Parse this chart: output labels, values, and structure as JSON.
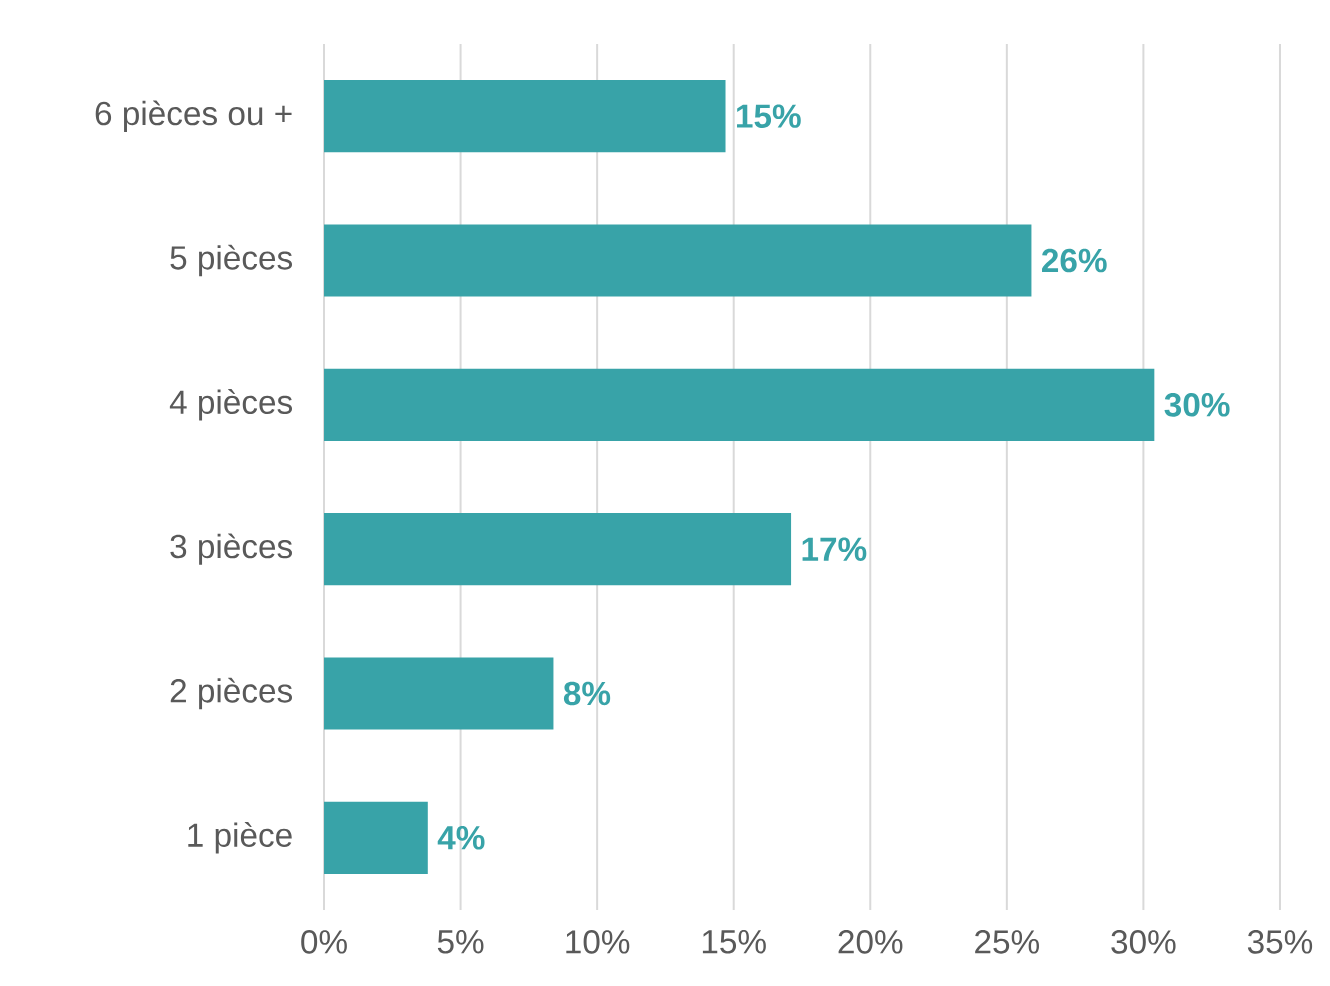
{
  "chart_data": {
    "type": "bar",
    "orientation": "horizontal",
    "categories": [
      "6 pièces ou +",
      "5 pièces",
      "4 pièces",
      "3 pièces",
      "2 pièces",
      "1 pièce"
    ],
    "values": [
      14.7,
      25.9,
      30.4,
      17.1,
      8.4,
      3.8
    ],
    "value_labels": [
      "15%",
      "26%",
      "30%",
      "17%",
      "8%",
      "4%"
    ],
    "color": "#38a3a8",
    "xlim": [
      0,
      35
    ],
    "xticks": [
      {
        "value": 0,
        "label": "0%"
      },
      {
        "value": 5,
        "label": "5%"
      },
      {
        "value": 10,
        "label": "10%"
      },
      {
        "value": 15,
        "label": "15%"
      },
      {
        "value": 20,
        "label": "20%"
      },
      {
        "value": 25,
        "label": "25%"
      },
      {
        "value": 30,
        "label": "30%"
      },
      {
        "value": 35,
        "label": "35%"
      }
    ],
    "grid": "x"
  }
}
